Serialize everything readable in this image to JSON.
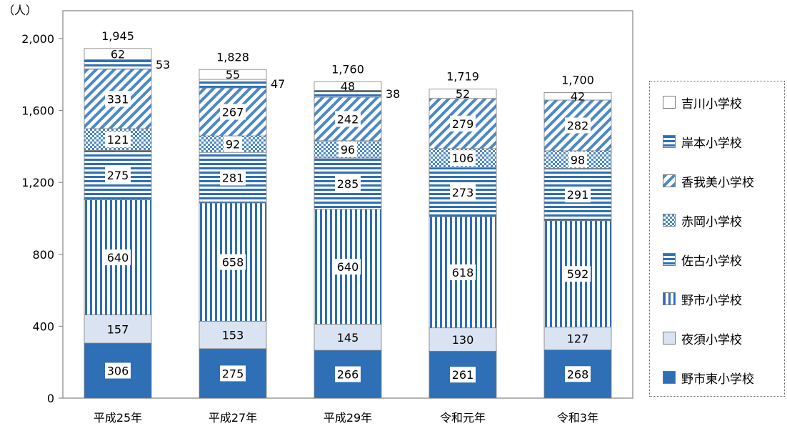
{
  "chart_data": {
    "type": "bar",
    "stacked": true,
    "unit_label": "（人）",
    "categories": [
      "平成25年",
      "平成27年",
      "平成29年",
      "令和元年",
      "令和3年"
    ],
    "totals": [
      "1,945",
      "1,828",
      "1,760",
      "1,719",
      "1,700"
    ],
    "ylim": [
      0,
      2000
    ],
    "yticks": [
      0,
      400,
      800,
      1200,
      1600,
      2000
    ],
    "ytick_labels": [
      "0",
      "400",
      "800",
      "1,200",
      "1,600",
      "2,000"
    ],
    "grid": false,
    "legend_position": "right",
    "series": [
      {
        "name": "野市東小学校",
        "values": [
          306,
          275,
          266,
          261,
          268
        ],
        "pattern": "solid",
        "color": "#2e6fb5"
      },
      {
        "name": "夜須小学校",
        "values": [
          157,
          153,
          145,
          130,
          127
        ],
        "pattern": "light",
        "color": "#d9e3f1"
      },
      {
        "name": "野市小学校",
        "values": [
          640,
          658,
          640,
          618,
          592
        ],
        "pattern": "vertical",
        "color": "#2e6fb5"
      },
      {
        "name": "佐古小学校",
        "values": [
          275,
          281,
          285,
          273,
          291
        ],
        "pattern": "horizontal",
        "color": "#2e6fb5"
      },
      {
        "name": "赤岡小学校",
        "values": [
          121,
          92,
          96,
          106,
          98
        ],
        "pattern": "checker",
        "color": "#2e6fb5"
      },
      {
        "name": "香我美小学校",
        "values": [
          331,
          267,
          242,
          279,
          282
        ],
        "pattern": "diagonal",
        "color": "#2e6fb5"
      },
      {
        "name": "岸本小学校",
        "values": [
          53,
          47,
          38,
          null,
          null
        ],
        "pattern": "horizontal",
        "color": "#2e6fb5"
      },
      {
        "name": "吉川小学校",
        "values": [
          62,
          55,
          48,
          52,
          42
        ],
        "pattern": "white",
        "color": "#ffffff"
      }
    ],
    "legend_order": [
      "吉川小学校",
      "岸本小学校",
      "香我美小学校",
      "赤岡小学校",
      "佐古小学校",
      "野市小学校",
      "夜須小学校",
      "野市東小学校"
    ]
  }
}
